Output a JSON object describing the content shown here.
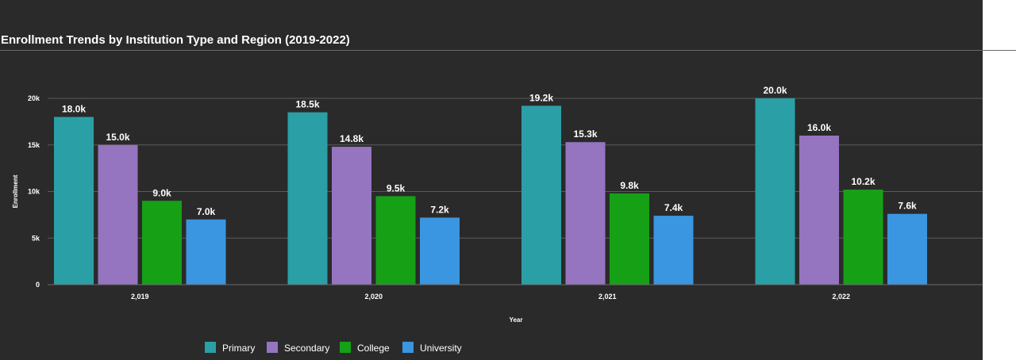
{
  "chart_data": {
    "type": "bar",
    "title": "Enrollment Trends by Institution Type and Region (2019-2022)",
    "xlabel": "Year",
    "ylabel": "Enrollment",
    "categories": [
      "2,019",
      "2,020",
      "2,021",
      "2,022"
    ],
    "ylim": [
      0,
      20000
    ],
    "yticks": [
      {
        "value": 0,
        "label": "0"
      },
      {
        "value": 5000,
        "label": "5k"
      },
      {
        "value": 10000,
        "label": "10k"
      },
      {
        "value": 15000,
        "label": "15k"
      },
      {
        "value": 20000,
        "label": "20k"
      }
    ],
    "grid": true,
    "legend_position": "bottom",
    "series": [
      {
        "name": "Primary",
        "color": "#2aa0a6",
        "values": [
          18000,
          18500,
          19200,
          20000
        ],
        "labels": [
          "18.0k",
          "18.5k",
          "19.2k",
          "20.0k"
        ]
      },
      {
        "name": "Secondary",
        "color": "#9574c0",
        "values": [
          15000,
          14800,
          15300,
          16000
        ],
        "labels": [
          "15.0k",
          "14.8k",
          "15.3k",
          "16.0k"
        ]
      },
      {
        "name": "College",
        "color": "#16a016",
        "values": [
          9000,
          9500,
          9800,
          10200
        ],
        "labels": [
          "9.0k",
          "9.5k",
          "9.8k",
          "10.2k"
        ]
      },
      {
        "name": "University",
        "color": "#3a96e0",
        "values": [
          7000,
          7200,
          7400,
          7600
        ],
        "labels": [
          "7.0k",
          "7.2k",
          "7.4k",
          "7.6k"
        ]
      }
    ]
  }
}
